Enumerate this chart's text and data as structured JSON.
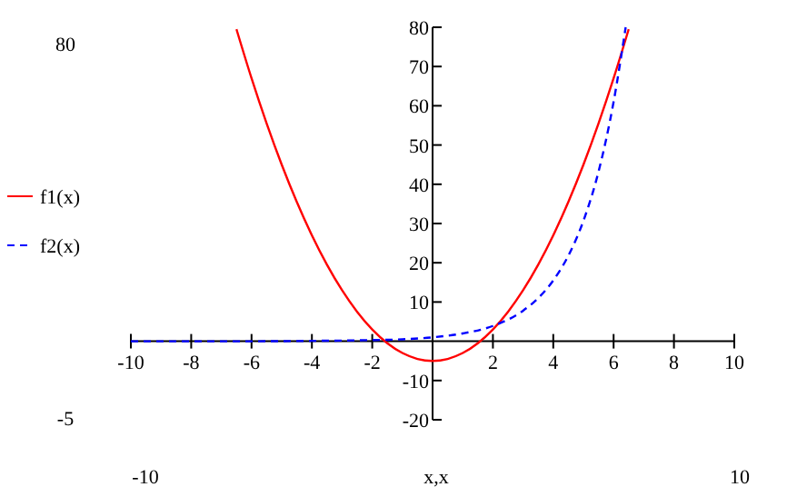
{
  "chart_data": {
    "type": "line",
    "xlabel": "x,x",
    "legend": "left",
    "grid": false,
    "xlim": [
      -10,
      10
    ],
    "ylim": [
      -20,
      80
    ],
    "xticks": [
      -10,
      -8,
      -6,
      -4,
      -2,
      2,
      4,
      6,
      8,
      10
    ],
    "yticks": [
      -20,
      -10,
      10,
      20,
      30,
      40,
      50,
      60,
      70,
      80
    ],
    "annotations": [
      "80",
      "-5",
      "-10",
      "10"
    ],
    "series": [
      {
        "name": "f1(x)",
        "color": "#ff0000",
        "line_style": "solid",
        "x": [
          -6.5,
          -6,
          -5.5,
          -5,
          -4.5,
          -4,
          -3.5,
          -3,
          -2.5,
          -2,
          -1.5,
          -1,
          -0.5,
          0,
          0.5,
          1,
          1.5,
          2,
          2.5,
          3,
          3.5,
          4,
          4.5,
          5,
          5.5,
          6,
          6.5
        ],
        "values": [
          79.5,
          67,
          55.5,
          45,
          35.5,
          27,
          19.5,
          13,
          7.5,
          3,
          -0.5,
          -3,
          -4.5,
          -5,
          -4.5,
          -3,
          -0.5,
          3,
          7.5,
          13,
          19.5,
          27,
          35.5,
          45,
          55.5,
          67,
          79.5
        ]
      },
      {
        "name": "f2(x)",
        "color": "#0000ff",
        "line_style": "dashed",
        "x": [
          -10,
          -8,
          -6,
          -4,
          -2,
          -1,
          0,
          1,
          2,
          3,
          3.5,
          4,
          4.5,
          5,
          5.5,
          6,
          6.4
        ],
        "values": [
          0,
          0,
          0,
          0.1,
          0.3,
          0.5,
          1,
          2,
          3.9,
          7.8,
          11,
          15.5,
          21.8,
          30.7,
          43.2,
          61,
          80
        ]
      }
    ]
  }
}
